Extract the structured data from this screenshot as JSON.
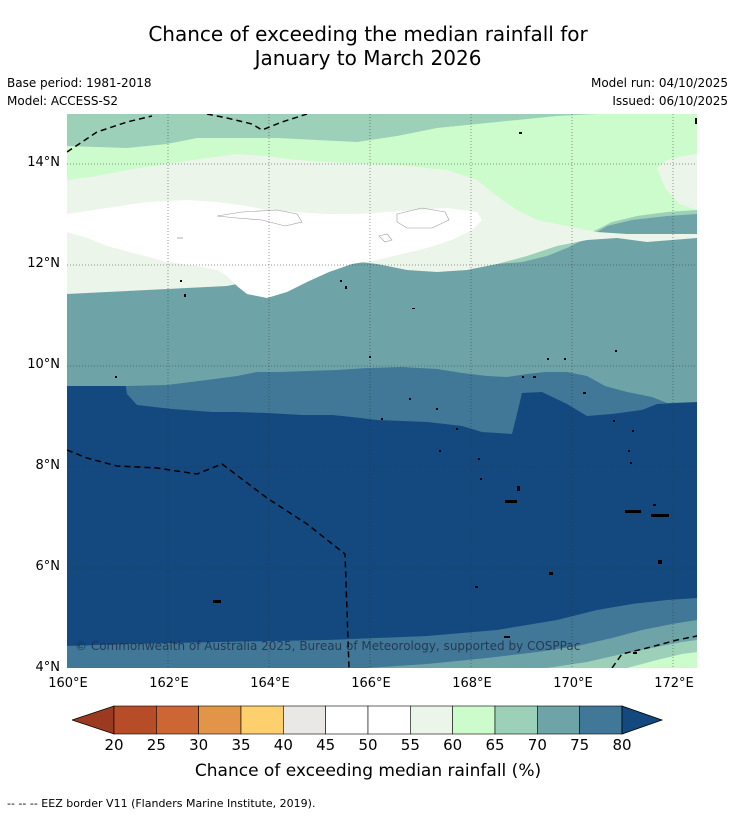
{
  "title_line1": "Chance of exceeding the median rainfall for",
  "title_line2": "January to March 2026",
  "meta": {
    "base_period": "Base period: 1981-2018",
    "model": "Model: ACCESS-S2",
    "model_run": "Model run: 04/10/2025",
    "issued": "Issued: 06/10/2025"
  },
  "map": {
    "lon_range": [
      160,
      172.4
    ],
    "lat_range": [
      4,
      15
    ],
    "lat_labels": [
      "14°N",
      "12°N",
      "10°N",
      "8°N",
      "6°N",
      "4°N"
    ],
    "lon_labels": [
      "160°E",
      "162°E",
      "164°E",
      "166°E",
      "168°E",
      "170°E",
      "172°E"
    ],
    "copyright": "© Commonwealth of Australia 2025, Bureau of Meteorology, supported by COSPPac",
    "colors": {
      "c45_55": "#ffffff",
      "c55_60": "#ebf5ea",
      "c60_65": "#ccfccb",
      "c65_70": "#9dd0b9",
      "c70_75": "#6ea4a7",
      "c75_80": "#417797",
      "c80_plus": "#13497f"
    }
  },
  "colorbar": {
    "ticks": [
      "20",
      "25",
      "30",
      "35",
      "40",
      "45",
      "50",
      "55",
      "60",
      "65",
      "70",
      "75",
      "80"
    ],
    "colors": [
      "#b64c28",
      "#cc6735",
      "#e29549",
      "#fdcf6d",
      "#e9e8e4",
      "#ffffff",
      "#ffffff",
      "#ebf5ea",
      "#ccfccb",
      "#9dd0b9",
      "#6ea4a7",
      "#417797"
    ],
    "under_color": "#9b3a20",
    "over_color": "#13497f",
    "label": "Chance of exceeding median rainfall (%)"
  },
  "footer": "--  --  -- EEZ border V11 (Flanders Marine Institute, 2019)."
}
